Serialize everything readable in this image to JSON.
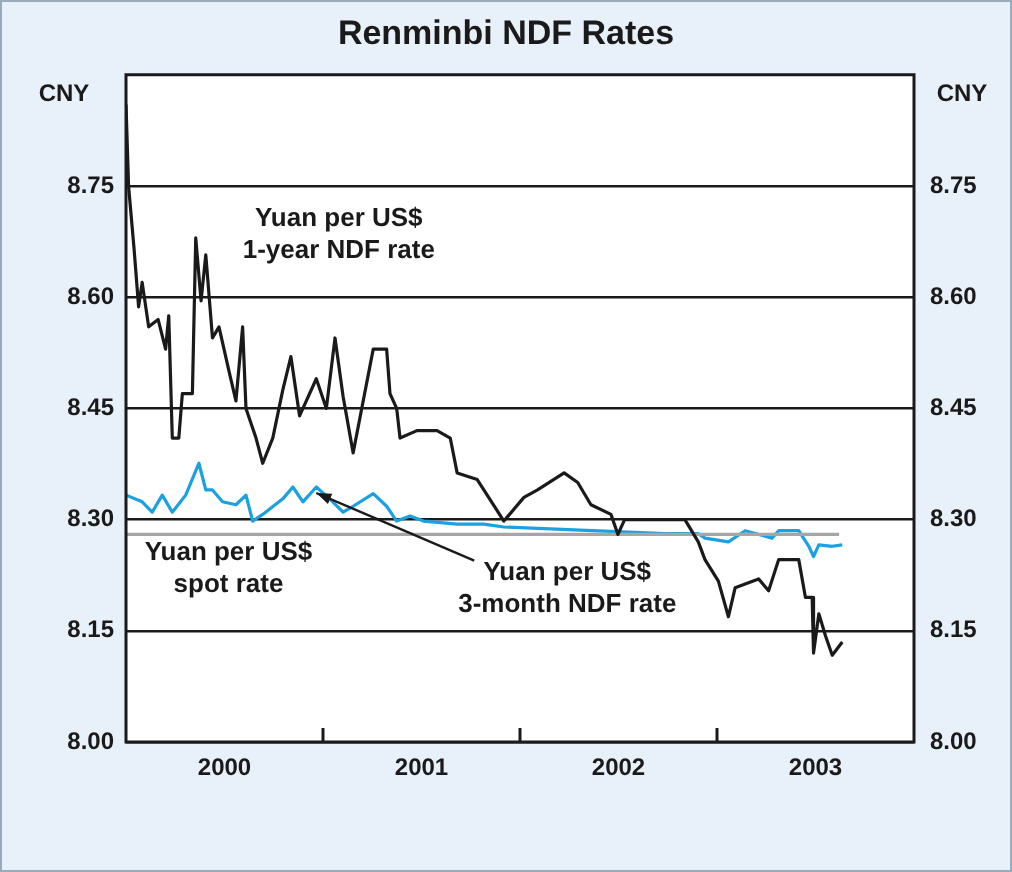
{
  "chart_data": {
    "type": "line",
    "title": "Renminbi NDF Rates",
    "ylabel": "CNY",
    "y2label": "CNY",
    "xlim": [
      2000,
      2004
    ],
    "xticks": [
      {
        "value": 2000.5,
        "label": "2000"
      },
      {
        "value": 2001,
        "label": null
      },
      {
        "value": 2001.5,
        "label": "2001"
      },
      {
        "value": 2002,
        "label": null
      },
      {
        "value": 2002.5,
        "label": "2002"
      },
      {
        "value": 2003,
        "label": null
      },
      {
        "value": 2003.5,
        "label": "2003"
      }
    ],
    "ylim": [
      8.0,
      8.9
    ],
    "yticks": [
      {
        "value": 8.0,
        "label": "8.00"
      },
      {
        "value": 8.15,
        "label": "8.15"
      },
      {
        "value": 8.3,
        "label": "8.30"
      },
      {
        "value": 8.45,
        "label": "8.45"
      },
      {
        "value": 8.6,
        "label": "8.60"
      },
      {
        "value": 8.75,
        "label": "8.75"
      }
    ],
    "y2lim": [
      8.0,
      8.9
    ],
    "y2ticks": [
      {
        "value": 8.0,
        "label": "8.00"
      },
      {
        "value": 8.15,
        "label": "8.15"
      },
      {
        "value": 8.3,
        "label": "8.30"
      },
      {
        "value": 8.45,
        "label": "8.45"
      },
      {
        "value": 8.6,
        "label": "8.60"
      },
      {
        "value": 8.75,
        "label": "8.75"
      }
    ],
    "grid": "y",
    "legend": false,
    "series": [
      {
        "name": "Yuan per US$ 1-year NDF rate",
        "color": "#1a1a1a",
        "x": [
          2000.0,
          2000.013,
          2000.041,
          2000.064,
          2000.082,
          2000.115,
          2000.163,
          2000.201,
          2000.217,
          2000.235,
          2000.268,
          2000.286,
          2000.337,
          2000.354,
          2000.381,
          2000.405,
          2000.439,
          2000.472,
          2000.523,
          2000.558,
          2000.592,
          2000.609,
          2000.66,
          2000.694,
          2000.745,
          2000.796,
          2000.837,
          2000.881,
          2000.966,
          2001.017,
          2001.061,
          2001.102,
          2001.153,
          2001.204,
          2001.255,
          2001.323,
          2001.34,
          2001.374,
          2001.391,
          2001.477,
          2001.579,
          2001.646,
          2001.681,
          2001.783,
          2001.918,
          2002.02,
          2002.089,
          2002.224,
          2002.293,
          2002.36,
          2002.462,
          2002.497,
          2002.531,
          2002.735,
          2002.837,
          2002.905,
          2002.939,
          2003.007,
          2003.058,
          2003.092,
          2003.211,
          2003.262,
          2003.313,
          2003.415,
          2003.449,
          2003.483,
          2003.49,
          2003.517,
          2003.551,
          2003.585,
          2003.636
        ],
        "values": [
          8.86,
          8.75,
          8.665,
          8.587,
          8.62,
          8.56,
          8.57,
          8.53,
          8.575,
          8.41,
          8.41,
          8.47,
          8.47,
          8.68,
          8.595,
          8.657,
          8.545,
          8.56,
          8.5,
          8.46,
          8.56,
          8.45,
          8.41,
          8.376,
          8.41,
          8.475,
          8.52,
          8.44,
          8.49,
          8.45,
          8.545,
          8.466,
          8.39,
          8.46,
          8.53,
          8.53,
          8.47,
          8.45,
          8.41,
          8.42,
          8.42,
          8.41,
          8.363,
          8.354,
          8.298,
          8.33,
          8.34,
          8.363,
          8.35,
          8.32,
          8.307,
          8.28,
          8.3,
          8.3,
          8.3,
          8.27,
          8.246,
          8.217,
          8.169,
          8.208,
          8.22,
          8.204,
          8.246,
          8.246,
          8.195,
          8.195,
          8.12,
          8.173,
          8.143,
          8.117,
          8.135
        ]
      },
      {
        "name": "Yuan per US$ spot rate",
        "color": "#a6a6a6",
        "x": [
          2000.0,
          2003.62
        ],
        "values": [
          8.28,
          8.28
        ]
      },
      {
        "name": "Yuan per US$ 3-month NDF rate",
        "color": "#1ba1e2",
        "x": [
          2000.0,
          2000.082,
          2000.133,
          2000.184,
          2000.235,
          2000.303,
          2000.37,
          2000.405,
          2000.439,
          2000.49,
          2000.558,
          2000.609,
          2000.643,
          2000.694,
          2000.796,
          2000.847,
          2000.898,
          2000.966,
          2001.034,
          2001.102,
          2001.153,
          2001.255,
          2001.323,
          2001.374,
          2001.442,
          2001.51,
          2001.681,
          2001.816,
          2001.918,
          2002.735,
          2002.905,
          2002.939,
          2003.058,
          2003.143,
          2003.279,
          2003.313,
          2003.415,
          2003.466,
          2003.49,
          2003.517,
          2003.585,
          2003.636
        ],
        "values": [
          8.333,
          8.324,
          8.31,
          8.333,
          8.31,
          8.333,
          8.376,
          8.34,
          8.34,
          8.324,
          8.32,
          8.333,
          8.298,
          8.307,
          8.328,
          8.344,
          8.324,
          8.344,
          8.328,
          8.31,
          8.318,
          8.335,
          8.318,
          8.298,
          8.305,
          8.298,
          8.294,
          8.294,
          8.29,
          8.281,
          8.281,
          8.275,
          8.27,
          8.285,
          8.275,
          8.285,
          8.285,
          8.264,
          8.25,
          8.266,
          8.264,
          8.266
        ]
      }
    ]
  }
}
